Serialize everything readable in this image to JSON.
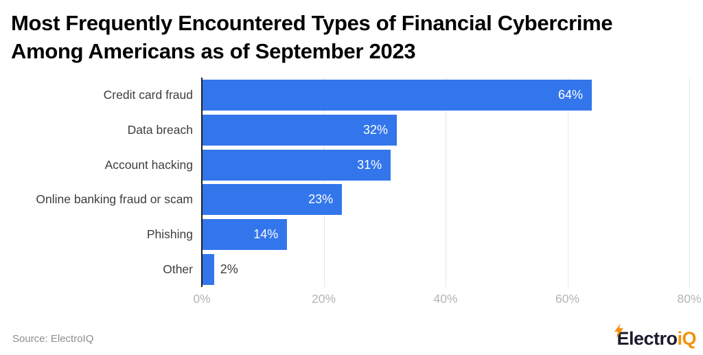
{
  "header": {
    "title_lines": [
      "Most Frequently Encountered Types of Financial Cybercrime",
      "Among Americans as of September 2023"
    ]
  },
  "chart_data": {
    "type": "bar",
    "orientation": "horizontal",
    "title": "Most Frequently Encountered Types of Financial Cybercrime Among Americans as of September 2023",
    "categories": [
      "Credit card fraud",
      "Data breach",
      "Account hacking",
      "Online banking fraud or scam",
      "Phishing",
      "Other"
    ],
    "values": [
      64,
      32,
      31,
      23,
      14,
      2
    ],
    "value_labels": [
      "64%",
      "32%",
      "31%",
      "23%",
      "14%",
      "2%"
    ],
    "x_tick_labels": [
      "0%",
      "20%",
      "40%",
      "60%",
      "80%"
    ],
    "x_tick_values": [
      0,
      20,
      40,
      60,
      80
    ],
    "xlim": [
      0,
      80
    ],
    "grid": true,
    "legend": "none",
    "bar_color": "#3376EC",
    "axis_line_color": "#1f1f1f",
    "gridline_color": "#e3e7e7",
    "value_label_inside_color": "#ffffff",
    "value_label_outside_color": "#3d3d3d",
    "inside_label_min_value": 5
  },
  "footer": {
    "source": "Source: ElectroIQ",
    "logo": {
      "text_primary": "Electro",
      "text_accent": "iQ",
      "primary_color": "#1c1c2e",
      "accent_color": "#f2920a",
      "bolt_icon": "lightning-bolt"
    }
  }
}
